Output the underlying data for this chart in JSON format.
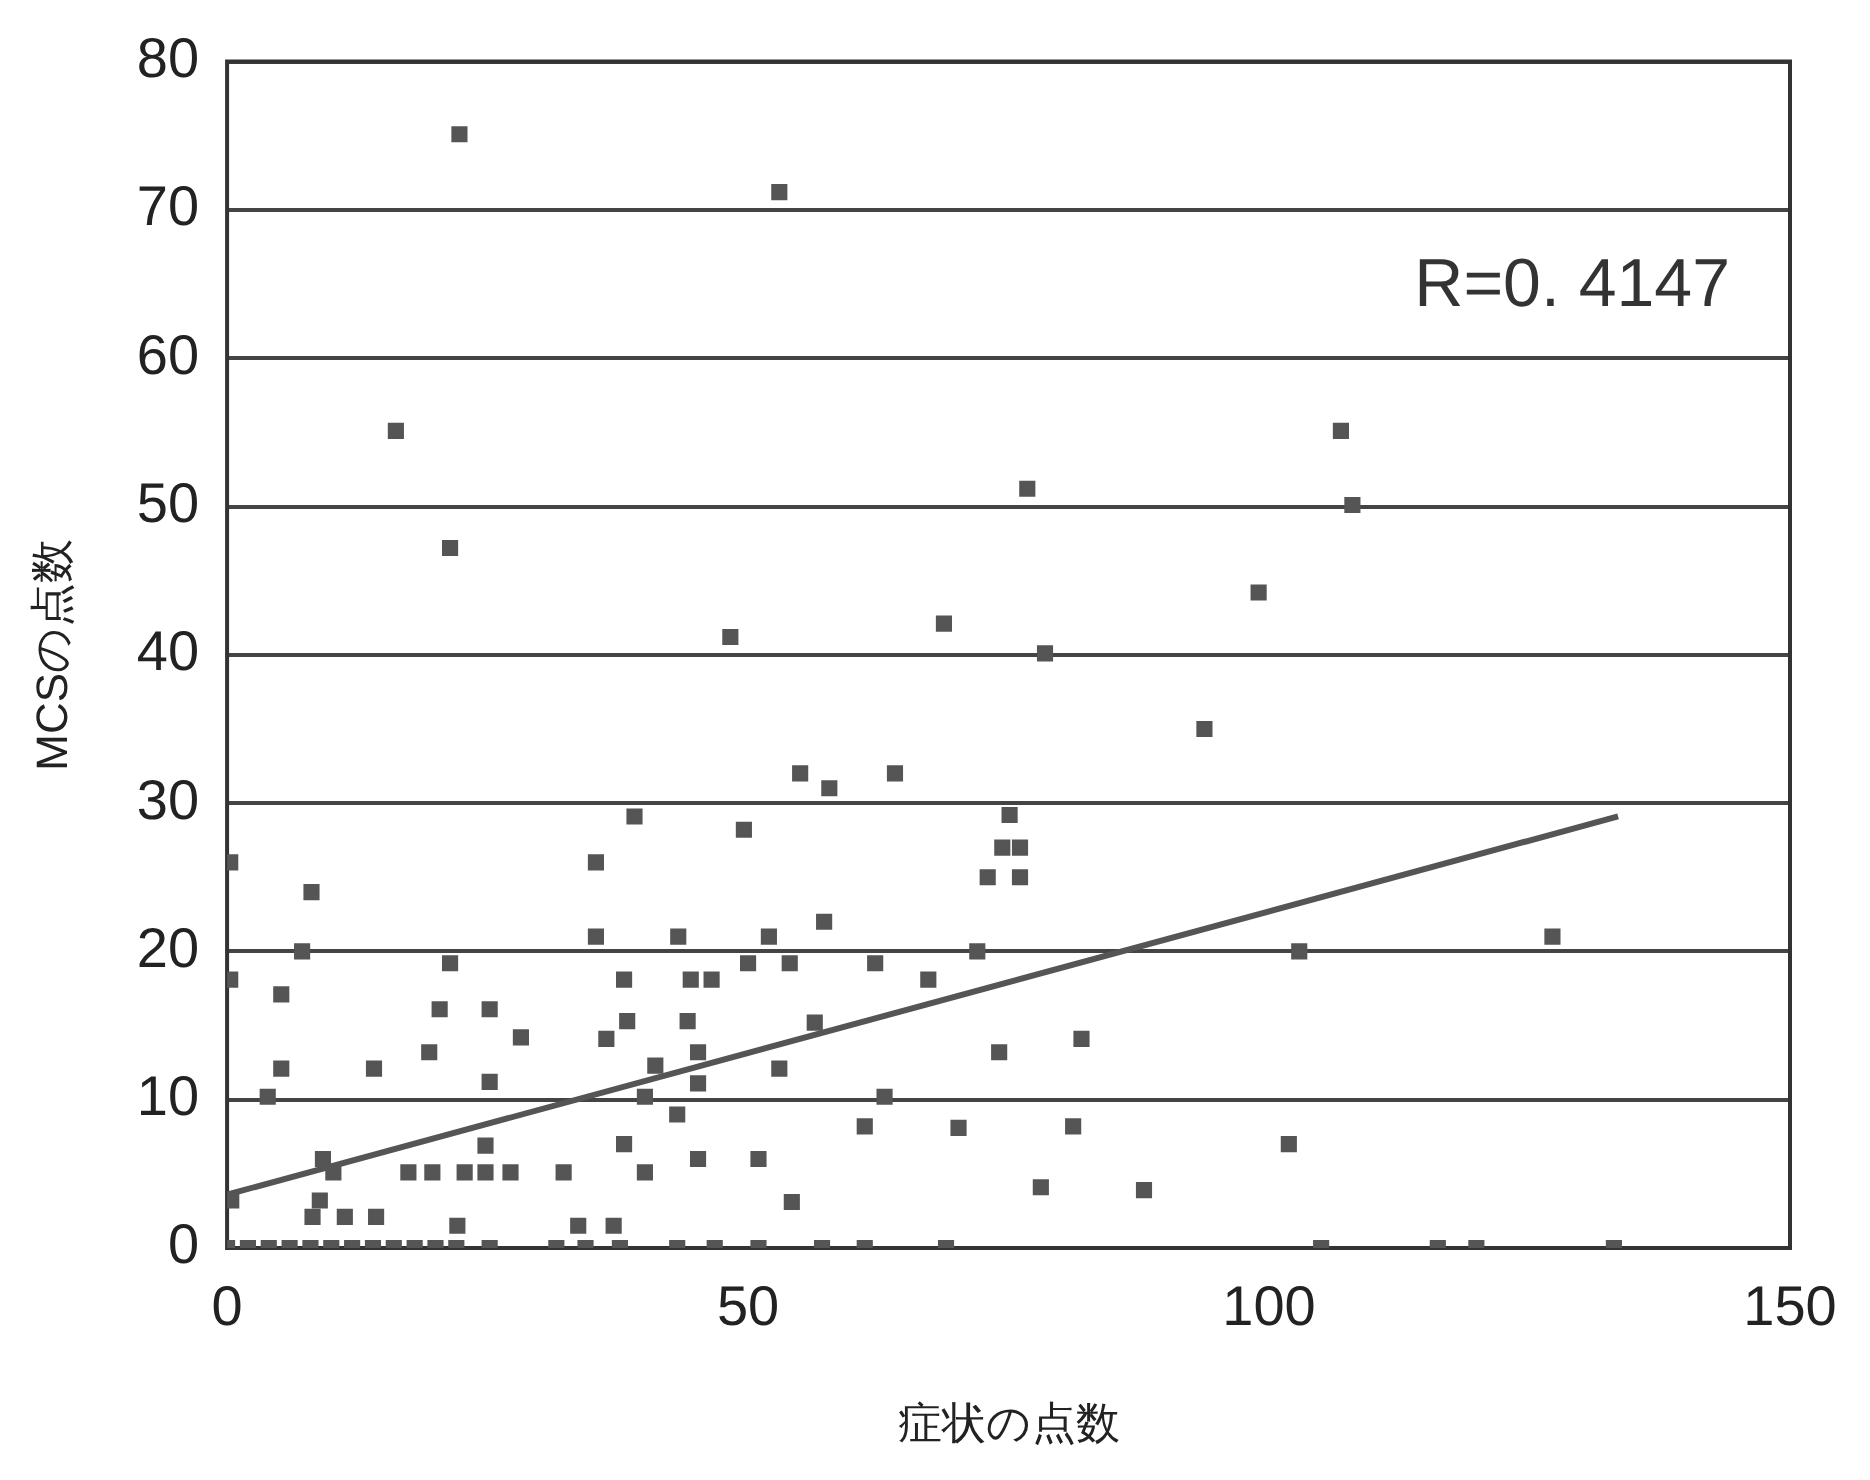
{
  "chart_data": {
    "type": "scatter",
    "xlabel": "症状の点数",
    "ylabel": "MCSの点数",
    "xlim": [
      0,
      150
    ],
    "xticks": [
      0,
      50,
      100,
      150
    ],
    "ylim": [
      0,
      80
    ],
    "yticks": [
      0,
      10,
      20,
      30,
      40,
      50,
      60,
      70,
      80
    ],
    "grid": "y",
    "legend": false,
    "annotations": [
      "R=0. 4147"
    ],
    "series": [
      {
        "color": "#555555",
        "marker": "square",
        "x": [
          22.3,
          53,
          16.2,
          76.8,
          21.4,
          48.3,
          68.8,
          106.9,
          108,
          99,
          78.5,
          93.8,
          55,
          57.8,
          64.1,
          75.1,
          74.4,
          76.1,
          73,
          76.1,
          57.3,
          52,
          50,
          54,
          62.2,
          72,
          67.3,
          102.9,
          127.2,
          56.4,
          82,
          74.1,
          53,
          63.1,
          61.2,
          70.2,
          81.2,
          101.9,
          51,
          54.2,
          78.1,
          88,
          51,
          57.1,
          61.2,
          69,
          105,
          116.2,
          119.9,
          133.1,
          39.1,
          49.6,
          35.4,
          0.3,
          8.1,
          35.4,
          43.3,
          7.2,
          21.4,
          0.3,
          38.1,
          44.5,
          46.5,
          5.2,
          20.4,
          25.2,
          28.2,
          38.4,
          36.4,
          44.2,
          19.4,
          5.2,
          14.1,
          25.2,
          41.1,
          45.2,
          45.2,
          3.9,
          40.1,
          43.2,
          24.8,
          38.1,
          9.2,
          10.2,
          17.4,
          19.7,
          22.8,
          24.8,
          27.2,
          32.3,
          40.1,
          45.2,
          0.4,
          8.9,
          8.2,
          11.3,
          14.3,
          22.1,
          33.7,
          37.1,
          0,
          2,
          4,
          6,
          8,
          10,
          12,
          14,
          16,
          18,
          20,
          22,
          25.2,
          31.6,
          34.4,
          37.7,
          43.2,
          46.8
        ],
        "values": [
          75.1,
          71.2,
          55.1,
          51.2,
          47.2,
          41.2,
          42.1,
          55.1,
          50.1,
          44.2,
          40.1,
          35,
          32,
          31,
          32,
          29.2,
          27,
          27,
          25,
          25,
          22,
          21,
          19.2,
          19.2,
          19.2,
          20,
          18.1,
          20,
          21,
          15.2,
          14.1,
          13.2,
          12.1,
          10.2,
          8.2,
          8.1,
          8.2,
          7,
          6,
          3.1,
          4.1,
          3.9,
          0,
          0,
          0,
          0,
          0,
          0,
          0,
          0,
          29.1,
          28.2,
          26,
          26,
          24,
          21,
          21,
          20,
          19.2,
          18.1,
          18.1,
          18.1,
          18.1,
          17.1,
          16.1,
          16.1,
          14.2,
          15.3,
          14.1,
          15.3,
          13.2,
          12.1,
          12.1,
          11.2,
          12.3,
          13.2,
          11.1,
          10.2,
          10.2,
          9,
          6.9,
          7,
          6,
          5.1,
          5.1,
          5.1,
          5.1,
          5.1,
          5.1,
          5.1,
          5.1,
          6,
          3.2,
          3.2,
          2.1,
          2.1,
          2.1,
          1.5,
          1.5,
          1.5,
          0,
          0,
          0,
          0,
          0,
          0,
          0,
          0,
          0,
          0,
          0,
          0,
          0,
          0,
          0,
          0,
          0,
          0
        ]
      },
      {
        "type": "line",
        "color": "#555555",
        "marker": "none",
        "x": [
          0,
          133.5
        ],
        "values": [
          3.6,
          29.1
        ]
      }
    ]
  }
}
